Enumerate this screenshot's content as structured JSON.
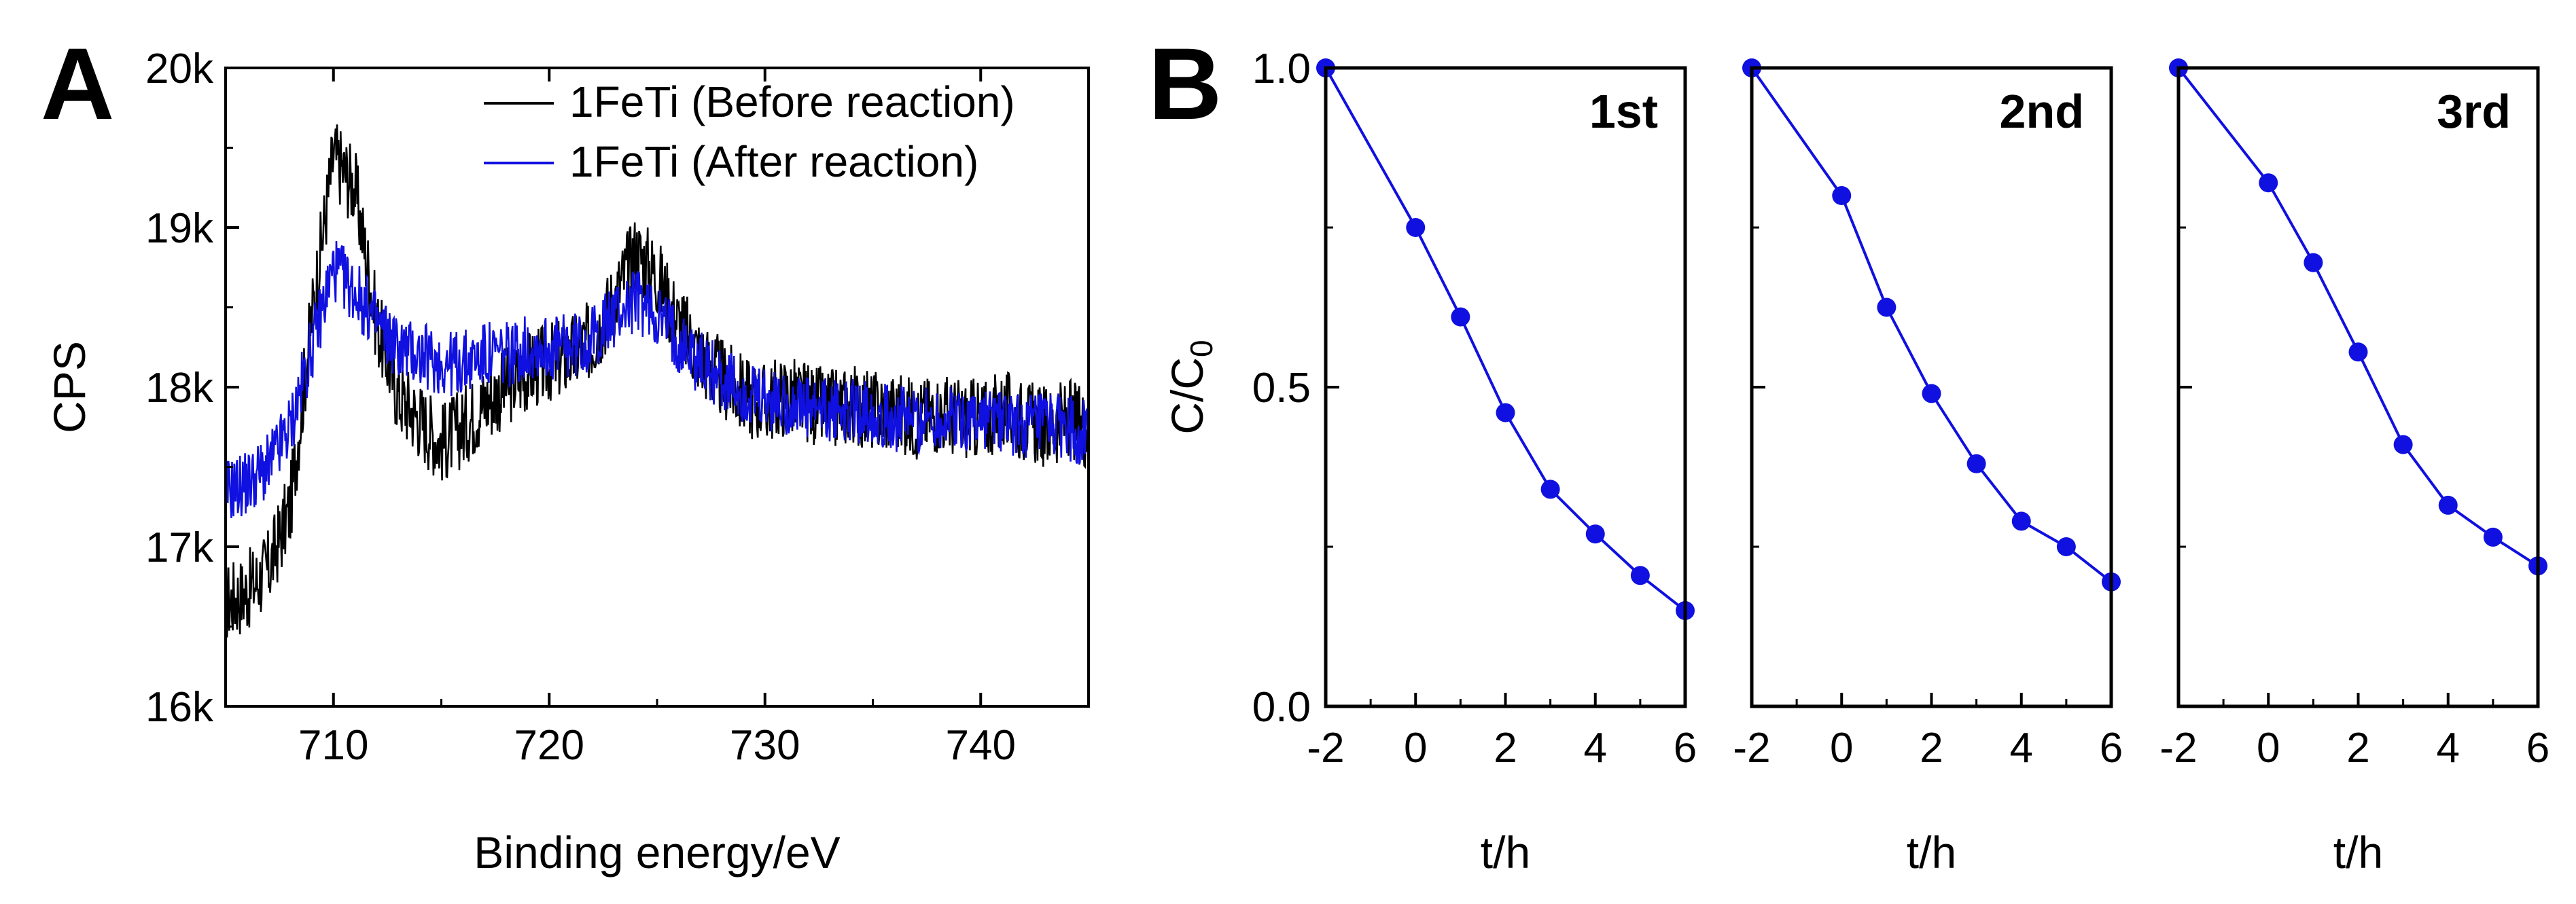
{
  "figure": {
    "panel_a_label": "A",
    "panel_b_label": "B"
  },
  "chart_data": [
    {
      "type": "line",
      "panel": "A",
      "title": "",
      "xlabel": "Binding energy/eV",
      "ylabel": "CPS",
      "xlim": [
        705,
        745
      ],
      "ylim": [
        16000,
        20000
      ],
      "xticks": [
        710,
        720,
        730,
        740
      ],
      "xtick_labels": [
        "710",
        "720",
        "730",
        "740"
      ],
      "yticks": [
        16000,
        17000,
        18000,
        19000,
        20000
      ],
      "ytick_labels": [
        "16k",
        "17k",
        "18k",
        "19k",
        "20k"
      ],
      "legend_position": "top-right",
      "series": [
        {
          "name": "1FeTi (Before reaction)",
          "color": "#000000",
          "x": [
            705,
            706,
            707,
            708,
            709,
            710,
            711,
            712,
            713,
            714,
            715,
            716,
            717,
            718,
            719,
            720,
            721,
            722,
            723,
            724,
            725,
            726,
            727,
            728,
            729,
            730,
            731,
            732,
            733,
            734,
            735,
            736,
            737,
            738,
            739,
            740,
            741,
            742,
            743,
            744,
            745
          ],
          "values": [
            16650,
            16720,
            16860,
            17250,
            18450,
            19450,
            19250,
            18400,
            17950,
            17800,
            17650,
            17750,
            17900,
            18000,
            18100,
            18150,
            18200,
            18300,
            18550,
            18850,
            18700,
            18400,
            18200,
            18050,
            17950,
            17900,
            17950,
            17900,
            17850,
            17900,
            17850,
            17850,
            17800,
            17850,
            17800,
            17800,
            17850,
            17800,
            17750,
            17800,
            17750
          ]
        },
        {
          "name": "1FeTi (After reaction)",
          "color": "#1010e0",
          "x": [
            705,
            706,
            707,
            708,
            709,
            710,
            711,
            712,
            713,
            714,
            715,
            716,
            717,
            718,
            719,
            720,
            721,
            722,
            723,
            724,
            725,
            726,
            727,
            728,
            729,
            730,
            731,
            732,
            733,
            734,
            735,
            736,
            737,
            738,
            739,
            740,
            741,
            742,
            743,
            744,
            745
          ],
          "values": [
            17350,
            17400,
            17500,
            17750,
            18250,
            18750,
            18600,
            18400,
            18250,
            18200,
            18150,
            18150,
            18200,
            18200,
            18250,
            18250,
            18250,
            18300,
            18450,
            18550,
            18450,
            18300,
            18150,
            18050,
            17950,
            17900,
            17900,
            17850,
            17850,
            17850,
            17850,
            17800,
            17800,
            17800,
            17800,
            17800,
            17800,
            17750,
            17750,
            17750,
            17700
          ]
        }
      ]
    },
    {
      "type": "line",
      "panel": "B",
      "title": "1st",
      "xlabel": "t/h",
      "ylabel": "C/C0",
      "ylabel_main": "C/C",
      "ylabel_sub": "0",
      "xlim": [
        -2,
        6
      ],
      "ylim": [
        0,
        1
      ],
      "xticks": [
        -2,
        0,
        2,
        4,
        6
      ],
      "xtick_labels": [
        "-2",
        "0",
        "2",
        "4",
        "6"
      ],
      "yticks": [
        0,
        0.5,
        1
      ],
      "ytick_labels": [
        "0.0",
        "0.5",
        "1.0"
      ],
      "series": [
        {
          "name": "1st",
          "color": "#1010e0",
          "x": [
            -2,
            0,
            1,
            2,
            3,
            4,
            5,
            6
          ],
          "values": [
            1.0,
            0.75,
            0.61,
            0.46,
            0.34,
            0.27,
            0.205,
            0.15
          ]
        }
      ]
    },
    {
      "type": "line",
      "panel": "B",
      "title": "2nd",
      "xlabel": "t/h",
      "ylabel": "",
      "xlim": [
        -2,
        6
      ],
      "ylim": [
        0,
        1
      ],
      "xticks": [
        -2,
        0,
        2,
        4,
        6
      ],
      "xtick_labels": [
        "-2",
        "0",
        "2",
        "4",
        "6"
      ],
      "series": [
        {
          "name": "2nd",
          "color": "#1010e0",
          "x": [
            -2,
            0,
            1,
            2,
            3,
            4,
            5,
            6
          ],
          "values": [
            1.0,
            0.8,
            0.625,
            0.49,
            0.38,
            0.29,
            0.25,
            0.195
          ]
        }
      ]
    },
    {
      "type": "line",
      "panel": "B",
      "title": "3rd",
      "xlabel": "t/h",
      "ylabel": "",
      "xlim": [
        -2,
        6
      ],
      "ylim": [
        0,
        1
      ],
      "xticks": [
        -2,
        0,
        2,
        4,
        6
      ],
      "xtick_labels": [
        "-2",
        "0",
        "2",
        "4",
        "6"
      ],
      "series": [
        {
          "name": "3rd",
          "color": "#1010e0",
          "x": [
            -2,
            0,
            1,
            2,
            3,
            4,
            5,
            6
          ],
          "values": [
            1.0,
            0.82,
            0.695,
            0.555,
            0.41,
            0.315,
            0.265,
            0.22
          ]
        }
      ]
    }
  ]
}
